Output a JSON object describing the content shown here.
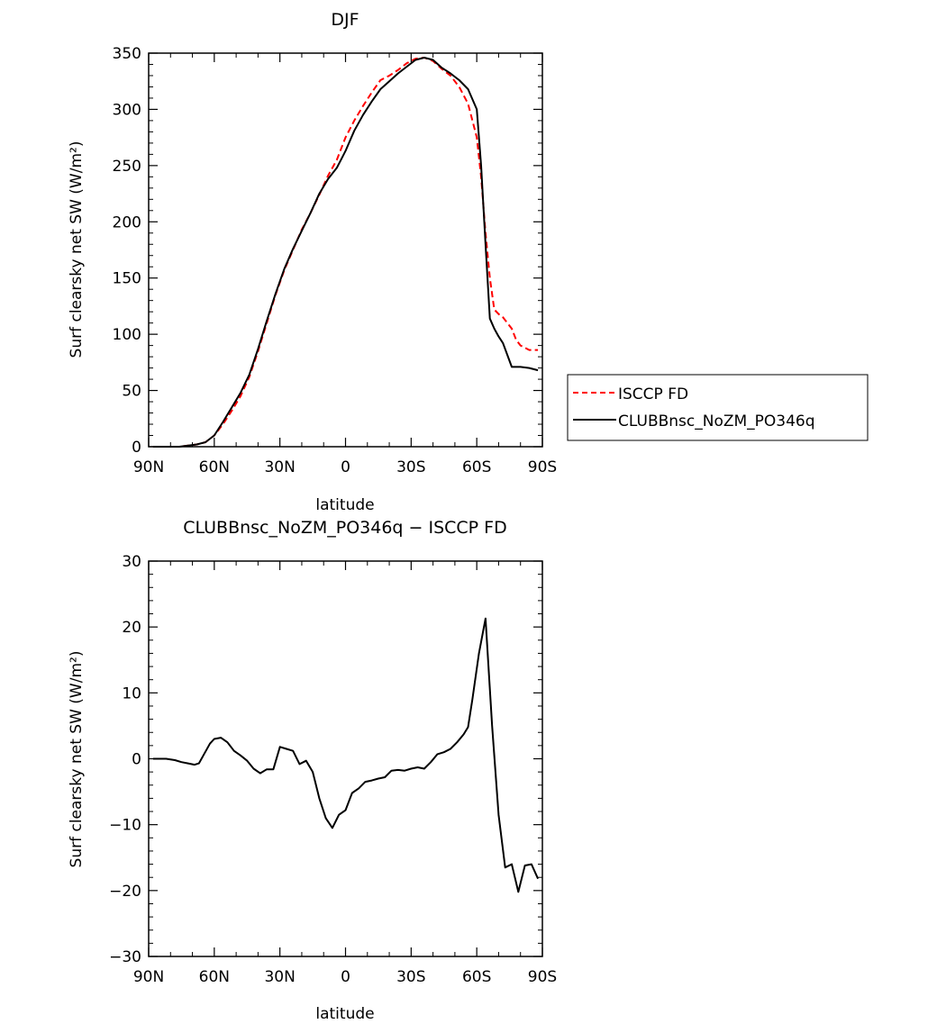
{
  "chart_data": [
    {
      "type": "line",
      "title": "DJF",
      "xlabel": "latitude",
      "ylabel": "Surf clearsky net SW (W/m²)",
      "xlim": [
        90,
        -90
      ],
      "ylim": [
        0,
        350
      ],
      "xticks": [
        90,
        60,
        30,
        0,
        -30,
        -60,
        -90
      ],
      "xticklabels": [
        "90N",
        "60N",
        "30N",
        "0",
        "30S",
        "60S",
        "90S"
      ],
      "yticks": [
        0,
        50,
        100,
        150,
        200,
        250,
        300,
        350
      ],
      "yticklabels": [
        "0",
        "50",
        "100",
        "150",
        "200",
        "250",
        "300",
        "350"
      ],
      "legend_position": "right",
      "series": [
        {
          "name": "ISCCP FD",
          "color": "#ff0000",
          "style": "dashed",
          "x": [
            88,
            84,
            80,
            76,
            72,
            68,
            64,
            60,
            56,
            52,
            48,
            44,
            40,
            36,
            32,
            28,
            24,
            20,
            16,
            12,
            8,
            4,
            0,
            -4,
            -8,
            -12,
            -16,
            -20,
            -24,
            -28,
            -32,
            -36,
            -40,
            -44,
            -48,
            -52,
            -56,
            -60,
            -62,
            -64,
            -66,
            -68,
            -70,
            -72,
            -76,
            -78,
            -80,
            -84,
            -88
          ],
          "y": [
            0,
            0,
            0,
            0,
            1,
            2,
            4,
            10,
            20,
            32,
            45,
            62,
            85,
            110,
            135,
            157,
            175,
            193,
            208,
            224,
            241,
            255,
            275,
            290,
            303,
            315,
            326,
            330,
            335,
            341,
            345,
            346,
            343,
            336,
            330,
            320,
            305,
            275,
            240,
            190,
            150,
            122,
            118,
            115,
            105,
            95,
            90,
            86,
            86
          ]
        },
        {
          "name": "CLUBBnsc_NoZM_PO346q",
          "color": "#000000",
          "style": "solid",
          "x": [
            88,
            84,
            80,
            76,
            72,
            68,
            64,
            60,
            56,
            52,
            48,
            44,
            40,
            36,
            32,
            28,
            24,
            20,
            16,
            12,
            8,
            4,
            0,
            -4,
            -8,
            -12,
            -16,
            -20,
            -24,
            -28,
            -32,
            -36,
            -40,
            -44,
            -48,
            -52,
            -56,
            -60,
            -62,
            -64,
            -66,
            -68,
            -70,
            -72,
            -76,
            -78,
            -80,
            -84,
            -88
          ],
          "y": [
            0,
            0,
            0,
            0,
            1,
            2,
            4,
            10,
            22,
            35,
            48,
            64,
            87,
            112,
            136,
            158,
            176,
            192,
            208,
            225,
            238,
            248,
            263,
            281,
            295,
            307,
            318,
            325,
            332,
            338,
            344,
            346,
            344,
            337,
            332,
            326,
            318,
            300,
            250,
            180,
            114,
            105,
            98,
            92,
            71,
            71,
            71,
            70,
            68
          ]
        }
      ]
    },
    {
      "type": "line",
      "title": "CLUBBnsc_NoZM_PO346q − ISCCP FD",
      "xlabel": "latitude",
      "ylabel": "Surf clearsky net SW (W/m²)",
      "xlim": [
        90,
        -90
      ],
      "ylim": [
        -30,
        30
      ],
      "xticks": [
        90,
        60,
        30,
        0,
        -30,
        -60,
        -90
      ],
      "xticklabels": [
        "90N",
        "60N",
        "30N",
        "0",
        "30S",
        "60S",
        "90S"
      ],
      "yticks": [
        -30,
        -20,
        -10,
        0,
        10,
        20,
        30
      ],
      "yticklabels": [
        "−30",
        "−20",
        "−10",
        "0",
        "10",
        "20",
        "30"
      ],
      "series": [
        {
          "color": "#000000",
          "style": "solid",
          "x": [
            88,
            82,
            78,
            75,
            72,
            69,
            67,
            65,
            62,
            60,
            57,
            54,
            51,
            48,
            45,
            42,
            39,
            36,
            33,
            30,
            27,
            24,
            21,
            18,
            15,
            12,
            9,
            6,
            3,
            0,
            -3,
            -6,
            -9,
            -12,
            -15,
            -18,
            -21,
            -24,
            -27,
            -30,
            -33,
            -36,
            -39,
            -42,
            -45,
            -48,
            -51,
            -54,
            -56,
            -58,
            -61,
            -64,
            -67,
            -70,
            -73,
            -76,
            -79,
            -82,
            -85,
            -88
          ],
          "y": [
            0,
            0,
            -0.2,
            -0.5,
            -0.7,
            -0.9,
            -0.7,
            0.5,
            2.3,
            3.0,
            3.2,
            2.5,
            1.2,
            0.5,
            -0.3,
            -1.5,
            -2.2,
            -1.6,
            -1.6,
            1.8,
            1.5,
            1.2,
            -0.8,
            -0.3,
            -2.0,
            -6.0,
            -9.0,
            -10.5,
            -8.5,
            -7.8,
            -5.2,
            -4.5,
            -3.5,
            -3.3,
            -3.0,
            -2.8,
            -1.8,
            -1.7,
            -1.8,
            -1.5,
            -1.3,
            -1.5,
            -0.5,
            0.7,
            1.0,
            1.5,
            2.5,
            3.7,
            4.8,
            9.0,
            16.0,
            21.3,
            5.0,
            -8.5,
            -16.5,
            -16.0,
            -20.2,
            -16.2,
            -16.0,
            -18.2
          ]
        }
      ]
    }
  ]
}
